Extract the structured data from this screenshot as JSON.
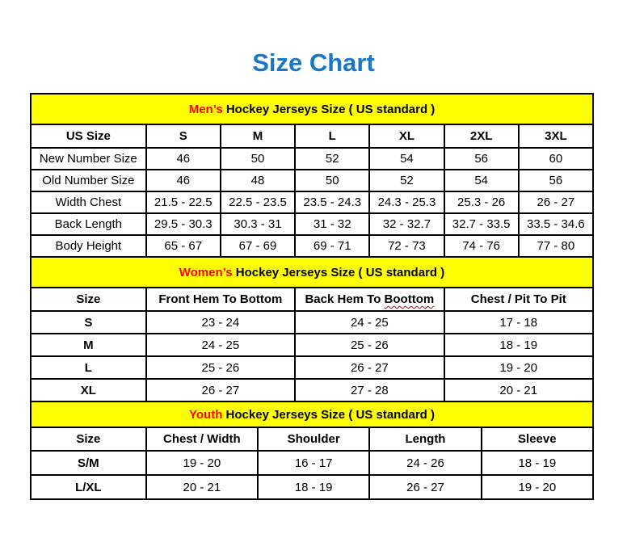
{
  "page": {
    "title": "Size Chart"
  },
  "colors": {
    "title_blue": "#1b76c7",
    "banner_yellow": "#ffff00",
    "highlight_red": "#ff0000",
    "border_black": "#000000"
  },
  "sections": [
    {
      "id": "mens",
      "banner": {
        "highlight": "Men’s",
        "rest": " Hockey Jerseys Size ( US standard )"
      },
      "columns": [
        "US Size",
        "S",
        "M",
        "L",
        "XL",
        "2XL",
        "3XL"
      ],
      "rows": [
        {
          "label": "New Number Size",
          "values": [
            "46",
            "50",
            "52",
            "54",
            "56",
            "60"
          ]
        },
        {
          "label": "Old Number Size",
          "values": [
            "46",
            "48",
            "50",
            "52",
            "54",
            "56"
          ]
        },
        {
          "label": "Width Chest",
          "values": [
            "21.5 - 22.5",
            "22.5 - 23.5",
            "23.5 - 24.3",
            "24.3 - 25.3",
            "25.3 - 26",
            "26 - 27"
          ]
        },
        {
          "label": "Back Length",
          "values": [
            "29.5 - 30.3",
            "30.3 - 31",
            "31 - 32",
            "32 - 32.7",
            "32.7 - 33.5",
            "33.5 - 34.6"
          ]
        },
        {
          "label": "Body Height",
          "values": [
            "65 - 67",
            "67 - 69",
            "69 - 71",
            "72 - 73",
            "74 - 76",
            "77 - 80"
          ]
        }
      ]
    },
    {
      "id": "womens",
      "banner": {
        "highlight": "Women’s",
        "rest": " Hockey Jerseys Size ( US standard )"
      },
      "columns": [
        "Size",
        "Front Hem To Bottom",
        {
          "text": "Back Hem To ",
          "squiggle": "Boottom"
        },
        "Chest / Pit To Pit"
      ],
      "rows": [
        {
          "label": "S",
          "values": [
            "23 - 24",
            "24 - 25",
            "17 - 18"
          ]
        },
        {
          "label": "M",
          "values": [
            "24 - 25",
            "25 - 26",
            "18 - 19"
          ]
        },
        {
          "label": "L",
          "values": [
            "25 - 26",
            "26 - 27",
            "19 - 20"
          ]
        },
        {
          "label": "XL",
          "values": [
            "26 - 27",
            "27 - 28",
            "20 - 21"
          ]
        }
      ]
    },
    {
      "id": "youth",
      "banner": {
        "highlight": "Youth",
        "rest": " Hockey Jerseys Size ( US standard )"
      },
      "columns": [
        "Size",
        "Chest / Width",
        "Shoulder",
        "Length",
        "Sleeve"
      ],
      "rows": [
        {
          "label": "S/M",
          "values": [
            "19 - 20",
            "16 - 17",
            "24 - 26",
            "18 - 19"
          ]
        },
        {
          "label": "L/XL",
          "values": [
            "20 - 21",
            "18 - 19",
            "26 - 27",
            "19 - 20"
          ]
        }
      ]
    }
  ]
}
